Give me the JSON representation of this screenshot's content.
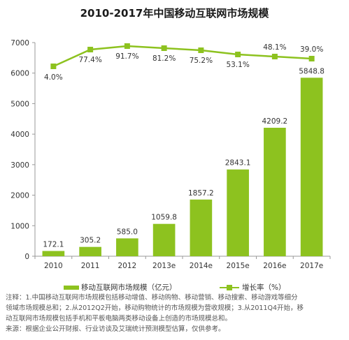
{
  "chart_data": {
    "type": "bar",
    "title": "2010-2017年中国移动互联网市场规模",
    "categories": [
      "2010",
      "2011",
      "2012",
      "2013e",
      "2014e",
      "2015e",
      "2016e",
      "2017e"
    ],
    "series": [
      {
        "name": "移动互联网市场规模（亿元）",
        "type": "bar",
        "values": [
          172.1,
          305.2,
          585.0,
          1059.8,
          1857.2,
          2843.1,
          4209.2,
          5848.8
        ],
        "labels": [
          "172.1",
          "305.2",
          "585.0",
          "1059.8",
          "1857.2",
          "2843.1",
          "4209.2",
          "5848.8"
        ]
      },
      {
        "name": "增长率（%）",
        "type": "line",
        "values": [
          4.0,
          77.4,
          91.7,
          81.2,
          75.2,
          53.1,
          48.1,
          39.0
        ],
        "labels": [
          "4.0%",
          "77.4%",
          "91.7%",
          "81.2%",
          "75.2%",
          "53.1%",
          "48.1%",
          "39.0%"
        ]
      }
    ],
    "ylim": [
      0,
      7000
    ],
    "yticks": [
      "0",
      "1000",
      "2000",
      "3000",
      "4000",
      "5000",
      "6000",
      "7000"
    ],
    "ylabel": "",
    "xlabel": "",
    "grid": false,
    "legend": "bottom",
    "colors": {
      "bar": "#8dc21f",
      "line": "#8dc21f",
      "axis": "#999999"
    }
  },
  "legend": {
    "bar_label": "移动互联网市场规模（亿元）",
    "line_label": "增长率（%）"
  },
  "footnote": {
    "line1": "注释：1.中国移动互联网市场规模包括移动增值、移动购物、移动营销、移动搜索、移动游戏等细分",
    "line2": "领域市场规模总和；2.从2012Q2开始，移动购物统计的市场规模为营收规模；3.从2011Q4开始，移",
    "line3": "动互联网市场规模包括手机和平板电脑两类移动设备上创造的市场规模总和。",
    "line4": "来源：根据企业公开财报、行业访谈及艾瑞统计预测模型估算，仅供参考。"
  }
}
